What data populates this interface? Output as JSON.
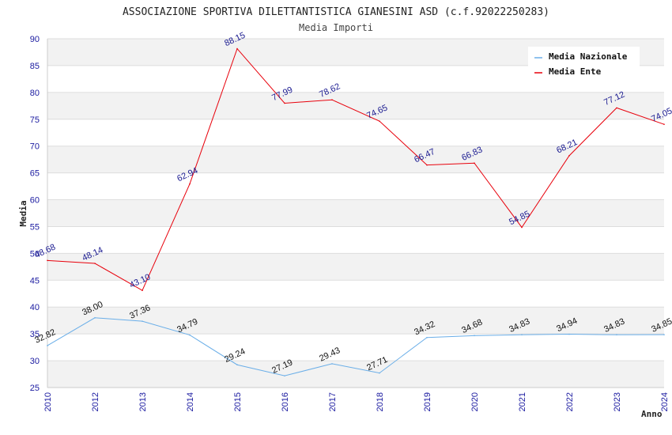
{
  "chart_data": {
    "type": "line",
    "title": "ASSOCIAZIONE SPORTIVA DILETTANTISTICA GIANESINI ASD (c.f.92022250283)",
    "subtitle": "Media Importi",
    "xlabel": "Anno",
    "ylabel": "Media",
    "ylim": [
      25,
      90
    ],
    "yticks": [
      25,
      30,
      35,
      40,
      45,
      50,
      55,
      60,
      65,
      70,
      75,
      80,
      85,
      90
    ],
    "categories": [
      "2010",
      "2012",
      "2013",
      "2014",
      "2015",
      "2016",
      "2017",
      "2018",
      "2019",
      "2020",
      "2021",
      "2022",
      "2023",
      "2024"
    ],
    "grid": "horizontal bands",
    "legend_position": "top-right",
    "series": [
      {
        "name": "Media Nazionale",
        "color": "#6aaee8",
        "values": [
          32.82,
          38.0,
          37.36,
          34.79,
          29.24,
          27.19,
          29.43,
          27.71,
          34.32,
          34.68,
          34.83,
          34.94,
          34.83,
          34.85
        ],
        "labels": [
          "32.82",
          "38.00",
          "37.36",
          "34.79",
          "29.24",
          "27.19",
          "29.43",
          "27.71",
          "34.32",
          "34.68",
          "34.83",
          "34.94",
          "34.83",
          "34.85"
        ]
      },
      {
        "name": "Media Ente",
        "color": "#e8000b",
        "values": [
          48.68,
          48.14,
          43.1,
          62.94,
          88.15,
          77.99,
          78.62,
          74.65,
          66.47,
          66.83,
          54.85,
          68.21,
          77.12,
          74.05
        ],
        "labels": [
          "48.68",
          "48.14",
          "43.10",
          "62.94",
          "88.15",
          "77.99",
          "78.62",
          "74.65",
          "66.47",
          "66.83",
          "54.85",
          "68.21",
          "77.12",
          "74.05"
        ]
      }
    ]
  }
}
